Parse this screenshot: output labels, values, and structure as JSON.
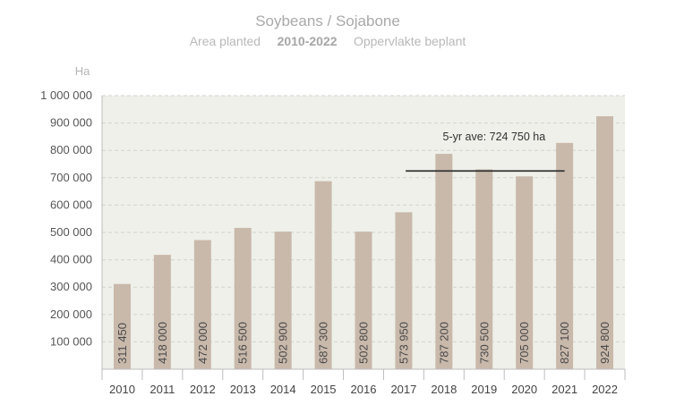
{
  "title": "Soybeans / Sojabone",
  "subtitle": {
    "left": "Area planted",
    "middle": "2010-2022",
    "right": "Oppervlakte beplant"
  },
  "chart_data": {
    "type": "bar",
    "unit_label": "Ha",
    "categories": [
      "2010",
      "2011",
      "2012",
      "2013",
      "2014",
      "2015",
      "2016",
      "2017",
      "2018",
      "2019",
      "2020",
      "2021",
      "2022"
    ],
    "values": [
      311450,
      418000,
      472000,
      516500,
      502900,
      687300,
      502800,
      573950,
      787200,
      730500,
      705000,
      827100,
      924800
    ],
    "data_labels": [
      "311 450",
      "418 000",
      "472 000",
      "516 500",
      "502 900",
      "687 300",
      "502 800",
      "573 950",
      "787 200",
      "730 500",
      "705 000",
      "827 100",
      "924 800"
    ],
    "ylim": [
      0,
      1000000
    ],
    "yticks": [
      100000,
      200000,
      300000,
      400000,
      500000,
      600000,
      700000,
      800000,
      900000,
      1000000
    ],
    "ytick_labels": [
      "100 000",
      "200 000",
      "300 000",
      "400 000",
      "500 000",
      "600 000",
      "700 000",
      "800 000",
      "900 000",
      "1 000 000"
    ],
    "grid": true,
    "colors": {
      "bar": "#c9b9ab",
      "plot_background": "#eef0e9",
      "average_line": "#333333"
    },
    "average": {
      "label": "5-yr ave: 724 750 ha",
      "value": 724750,
      "from_category": "2018",
      "to_category": "2021"
    }
  }
}
